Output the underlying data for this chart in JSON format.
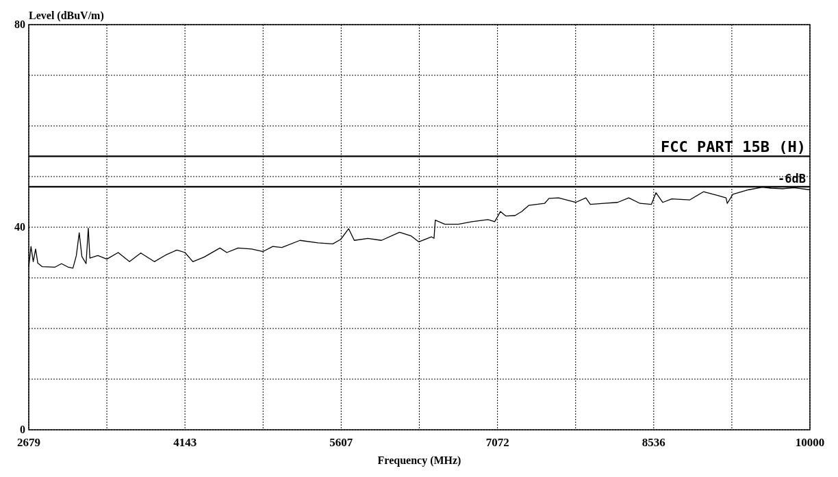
{
  "chart_data": {
    "type": "line",
    "xlabel": "Frequency (MHz)",
    "ylabel": "Level (dBuV/m)",
    "xlim": [
      2679,
      10000
    ],
    "ylim": [
      0,
      80
    ],
    "xticks": [
      2679,
      {
        "value": 3411,
        "label": null
      },
      4143,
      {
        "value": 4875,
        "label": null
      },
      5607,
      {
        "value": 6339,
        "label": null
      },
      7072,
      {
        "value": 7804,
        "label": null
      },
      8536,
      {
        "value": 9268,
        "label": null
      },
      10000
    ],
    "yticks": [
      0,
      {
        "value": 10,
        "label": null
      },
      {
        "value": 20,
        "label": null
      },
      {
        "value": 30,
        "label": null
      },
      40,
      {
        "value": 50,
        "label": null
      },
      {
        "value": 60,
        "label": null
      },
      {
        "value": 70,
        "label": null
      },
      80
    ],
    "grid": true,
    "line_style": "solid",
    "marker": "none",
    "ref_lines": [
      {
        "axis": "y",
        "value": 54,
        "label": "FCC PART 15B (H)",
        "color": "#000000"
      },
      {
        "axis": "y",
        "value": 48,
        "label": "-6dB",
        "color": "#000000"
      }
    ],
    "series": [
      {
        "color": "#000000",
        "x": [
          2679,
          2700,
          2721,
          2743,
          2764,
          2806,
          2923,
          2986,
          3050,
          3093,
          3125,
          3152,
          3177,
          3216,
          3237,
          3252,
          3326,
          3411,
          3517,
          3623,
          3729,
          3856,
          3962,
          4068,
          4143,
          4217,
          4323,
          4471,
          4535,
          4641,
          4768,
          4875,
          4966,
          5051,
          5221,
          5390,
          5528,
          5603,
          5677,
          5730,
          5857,
          5984,
          6154,
          6260,
          6335,
          6452,
          6477,
          6489,
          6578,
          6706,
          6833,
          6982,
          7046,
          7099,
          7151,
          7236,
          7300,
          7364,
          7513,
          7555,
          7645,
          7804,
          7900,
          7942,
          8069,
          8197,
          8302,
          8408,
          8514,
          8557,
          8620,
          8705,
          8875,
          9002,
          9130,
          9214,
          9225,
          9278,
          9426,
          9554,
          9638,
          9744,
          9850,
          10000
        ],
        "values": [
          32.1,
          36.2,
          33.2,
          35.7,
          32.9,
          32.2,
          32.1,
          32.8,
          32.1,
          31.9,
          34.4,
          38.9,
          34.2,
          32.8,
          39.8,
          33.9,
          34.4,
          33.7,
          35,
          33.2,
          34.9,
          33.2,
          34.5,
          35.5,
          35,
          33.2,
          34.1,
          35.9,
          35,
          35.9,
          35.7,
          35.2,
          36.2,
          36,
          37.4,
          36.9,
          36.7,
          37.6,
          39.7,
          37.4,
          37.8,
          37.4,
          39,
          38.3,
          37.1,
          38.1,
          37.8,
          41.4,
          40.6,
          40.6,
          41.1,
          41.5,
          41.1,
          43.1,
          42.2,
          42.3,
          43.1,
          44.3,
          44.7,
          45.7,
          45.8,
          44.9,
          45.8,
          44.5,
          44.7,
          44.9,
          45.8,
          44.7,
          44.5,
          46.8,
          44.9,
          45.6,
          45.4,
          47,
          46.3,
          45.8,
          44.7,
          46.5,
          47.4,
          47.9,
          47.7,
          47.6,
          47.8,
          47.4
        ]
      }
    ]
  }
}
